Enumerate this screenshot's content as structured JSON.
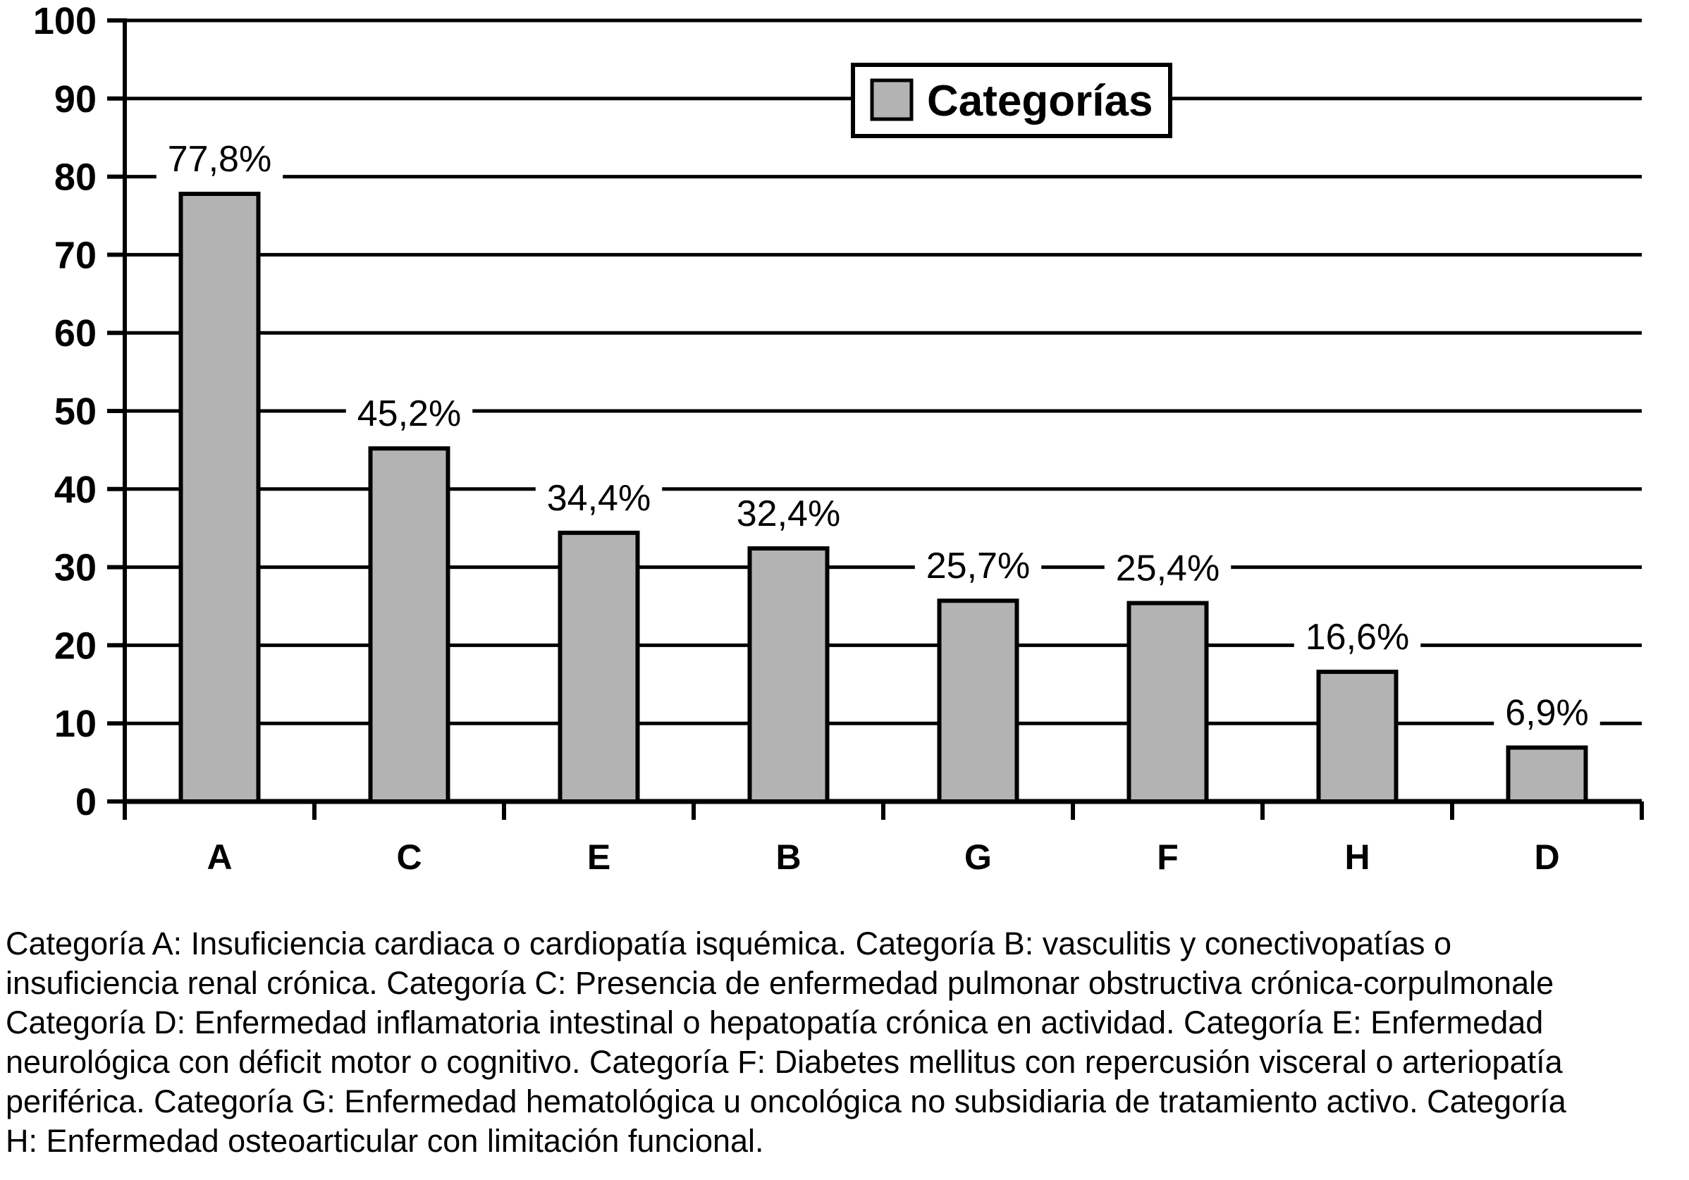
{
  "chart_data": {
    "type": "bar",
    "title": "",
    "xlabel": "",
    "ylabel": "",
    "categories": [
      "A",
      "C",
      "E",
      "B",
      "G",
      "F",
      "H",
      "D"
    ],
    "values": [
      77.8,
      45.2,
      34.4,
      32.4,
      25.7,
      25.4,
      16.6,
      6.9
    ],
    "display_labels": [
      "77,8%",
      "45,2%",
      "34,4%",
      "32,4%",
      "25,7%",
      "25,4%",
      "16,6%",
      "6,9%"
    ],
    "series_name": "Categorías",
    "legend": {
      "label": "Categorías",
      "position": "top-right"
    },
    "ylim": [
      0,
      100
    ],
    "ytick_step": 10,
    "ytick_labels": [
      "0",
      "10",
      "20",
      "30",
      "40",
      "50",
      "60",
      "70",
      "80",
      "90",
      "100"
    ],
    "grid": true,
    "bar_color": "#b3b3b3",
    "line_color": "#000000",
    "background_color": "#ffffff"
  },
  "caption": {
    "lines": [
      "Categoría A: Insuficiencia cardiaca o cardiopatía isquémica. Categoría B: vasculitis y conectivopatías o",
      "insuficiencia renal crónica. Categoría C: Presencia de enfermedad pulmonar obstructiva crónica-corpulmonale",
      "Categoría D: Enfermedad inflamatoria intestinal o hepatopatía crónica en actividad. Categoría E: Enfermedad",
      "neurológica con déficit motor o cognitivo. Categoría F: Diabetes mellitus con repercusión visceral o arteriopatía",
      "periférica. Categoría G: Enfermedad hematológica u oncológica no subsidiaria de tratamiento activo. Categoría",
      "H: Enfermedad osteoarticular con limitación funcional."
    ]
  }
}
